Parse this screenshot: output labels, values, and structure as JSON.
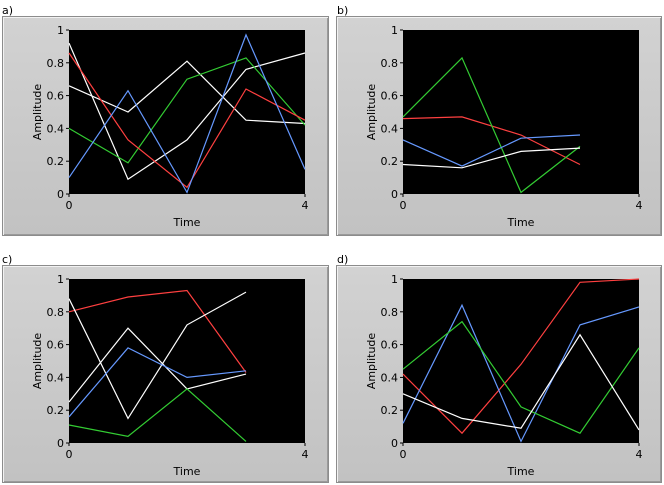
{
  "chart_data": [
    {
      "type": "line",
      "panel_label": "a)",
      "xlabel": "Time",
      "ylabel": "Amplitude",
      "xlim": [
        0,
        4
      ],
      "ylim": [
        0,
        1
      ],
      "x_ticks": [
        "0",
        "4"
      ],
      "y_ticks": [
        "0",
        "0.2",
        "0.4",
        "0.6",
        "0.8",
        "1"
      ],
      "x": [
        0,
        1,
        2,
        3,
        4
      ],
      "series": [
        {
          "color": "#ffffff",
          "values": [
            0.66,
            0.5,
            0.81,
            0.45,
            0.43
          ]
        },
        {
          "color": "#ffffff",
          "values": [
            0.92,
            0.09,
            0.33,
            0.76,
            0.86
          ]
        },
        {
          "color": "#33cc33",
          "values": [
            0.4,
            0.19,
            0.7,
            0.83,
            0.42
          ]
        },
        {
          "color": "#ff4040",
          "values": [
            0.86,
            0.33,
            0.04,
            0.64,
            0.45
          ]
        },
        {
          "color": "#6699ff",
          "values": [
            0.1,
            0.63,
            0.01,
            0.97,
            0.15
          ]
        }
      ]
    },
    {
      "type": "line",
      "panel_label": "b)",
      "xlabel": "Time",
      "ylabel": "Amplitude",
      "xlim": [
        0,
        4
      ],
      "ylim": [
        0,
        1
      ],
      "x_ticks": [
        "0",
        "4"
      ],
      "y_ticks": [
        "0",
        "0.2",
        "0.4",
        "0.6",
        "0.8",
        "1"
      ],
      "x": [
        0,
        1,
        2,
        3
      ],
      "series": [
        {
          "color": "#ff4040",
          "values": [
            0.46,
            0.47,
            0.36,
            0.18
          ]
        },
        {
          "color": "#33cc33",
          "values": [
            0.47,
            0.83,
            0.01,
            0.29
          ]
        },
        {
          "color": "#6699ff",
          "values": [
            0.33,
            0.17,
            0.34,
            0.36
          ]
        },
        {
          "color": "#ffffff",
          "values": [
            0.18,
            0.16,
            0.26,
            0.28
          ]
        }
      ]
    },
    {
      "type": "line",
      "panel_label": "c)",
      "xlabel": "Time",
      "ylabel": "Amplitude",
      "xlim": [
        0,
        4
      ],
      "ylim": [
        0,
        1
      ],
      "x_ticks": [
        "0",
        "4"
      ],
      "y_ticks": [
        "0",
        "0.2",
        "0.4",
        "0.6",
        "0.8",
        "1"
      ],
      "x": [
        0,
        1,
        2,
        3
      ],
      "series": [
        {
          "color": "#ff4040",
          "values": [
            0.8,
            0.89,
            0.93,
            0.43
          ]
        },
        {
          "color": "#ffffff",
          "values": [
            0.88,
            0.15,
            0.72,
            0.92
          ]
        },
        {
          "color": "#ffffff",
          "values": [
            0.25,
            0.7,
            0.33,
            0.42
          ]
        },
        {
          "color": "#6699ff",
          "values": [
            0.16,
            0.58,
            0.4,
            0.44
          ]
        },
        {
          "color": "#33cc33",
          "values": [
            0.11,
            0.04,
            0.33,
            0.01
          ]
        }
      ]
    },
    {
      "type": "line",
      "panel_label": "d)",
      "xlabel": "Time",
      "ylabel": "Amplitude",
      "xlim": [
        0,
        4
      ],
      "ylim": [
        0,
        1
      ],
      "x_ticks": [
        "0",
        "4"
      ],
      "y_ticks": [
        "0",
        "0.2",
        "0.4",
        "0.6",
        "0.8",
        "1"
      ],
      "x": [
        0,
        1,
        2,
        3,
        4
      ],
      "series": [
        {
          "color": "#ff4040",
          "values": [
            0.42,
            0.06,
            0.48,
            0.98,
            1.0
          ]
        },
        {
          "color": "#6699ff",
          "values": [
            0.12,
            0.84,
            0.01,
            0.72,
            0.83
          ]
        },
        {
          "color": "#33cc33",
          "values": [
            0.45,
            0.74,
            0.22,
            0.06,
            0.58
          ]
        },
        {
          "color": "#ffffff",
          "values": [
            0.3,
            0.15,
            0.09,
            0.66,
            0.08
          ]
        }
      ]
    }
  ]
}
